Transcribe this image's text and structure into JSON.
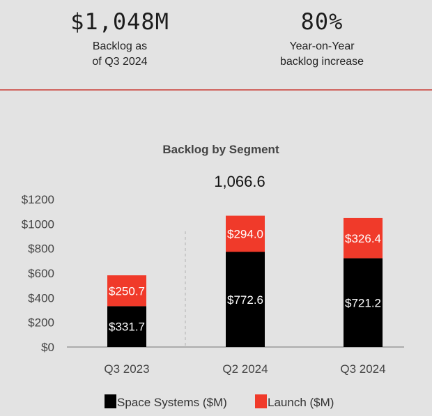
{
  "kpis": [
    {
      "value": "$1,048M",
      "label": "Backlog as\nof Q3 2024"
    },
    {
      "value": "80%",
      "label": "Year-on-Year\nbacklog increase"
    }
  ],
  "colors": {
    "space_systems": "#000000",
    "launch": "#f03a2a",
    "divider": "#d0645e",
    "background": "#e3e3e3"
  },
  "chart_data": {
    "type": "bar",
    "stacked": true,
    "title": "Backlog by Segment",
    "categories": [
      "Q3 2023",
      "Q2 2024",
      "Q3 2024"
    ],
    "series": [
      {
        "name": "Space Systems ($M)",
        "values": [
          331.7,
          772.6,
          721.2
        ],
        "labels": [
          "$331.7",
          "$772.6",
          "$721.2"
        ],
        "color": "#000000"
      },
      {
        "name": "Launch ($M)",
        "values": [
          250.7,
          294.0,
          326.4
        ],
        "labels": [
          "$250.7",
          "$294.0",
          "$326.4"
        ],
        "color": "#f03a2a"
      }
    ],
    "annotation": "1,066.6",
    "ylim": [
      0,
      1200
    ],
    "yticks": [
      0,
      200,
      400,
      600,
      800,
      1000,
      1200
    ],
    "ytick_labels": [
      "$0",
      "$200",
      "$400",
      "$600",
      "$800",
      "$1000",
      "$1200"
    ],
    "grid": false,
    "legend_position": "bottom"
  }
}
